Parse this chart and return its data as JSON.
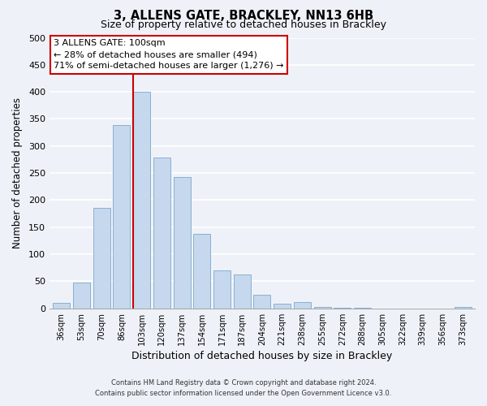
{
  "title": "3, ALLENS GATE, BRACKLEY, NN13 6HB",
  "subtitle": "Size of property relative to detached houses in Brackley",
  "xlabel": "Distribution of detached houses by size in Brackley",
  "ylabel": "Number of detached properties",
  "bar_labels": [
    "36sqm",
    "53sqm",
    "70sqm",
    "86sqm",
    "103sqm",
    "120sqm",
    "137sqm",
    "154sqm",
    "171sqm",
    "187sqm",
    "204sqm",
    "221sqm",
    "238sqm",
    "255sqm",
    "272sqm",
    "288sqm",
    "305sqm",
    "322sqm",
    "339sqm",
    "356sqm",
    "373sqm"
  ],
  "bar_values": [
    10,
    47,
    185,
    338,
    400,
    278,
    242,
    137,
    70,
    62,
    25,
    8,
    12,
    2,
    1,
    1,
    0,
    0,
    0,
    0,
    2
  ],
  "bar_color": "#c5d8ed",
  "bar_edge_color": "#8ab0d0",
  "highlight_bar_index": 4,
  "vline_color": "#cc0000",
  "ylim": [
    0,
    500
  ],
  "yticks": [
    0,
    50,
    100,
    150,
    200,
    250,
    300,
    350,
    400,
    450,
    500
  ],
  "annotation_title": "3 ALLENS GATE: 100sqm",
  "annotation_line1": "← 28% of detached houses are smaller (494)",
  "annotation_line2": "71% of semi-detached houses are larger (1,276) →",
  "annotation_box_color": "#ffffff",
  "annotation_box_edge": "#cc0000",
  "footnote1": "Contains HM Land Registry data © Crown copyright and database right 2024.",
  "footnote2": "Contains public sector information licensed under the Open Government Licence v3.0.",
  "bg_color": "#eef2f8",
  "plot_bg_color": "#eef2f8"
}
